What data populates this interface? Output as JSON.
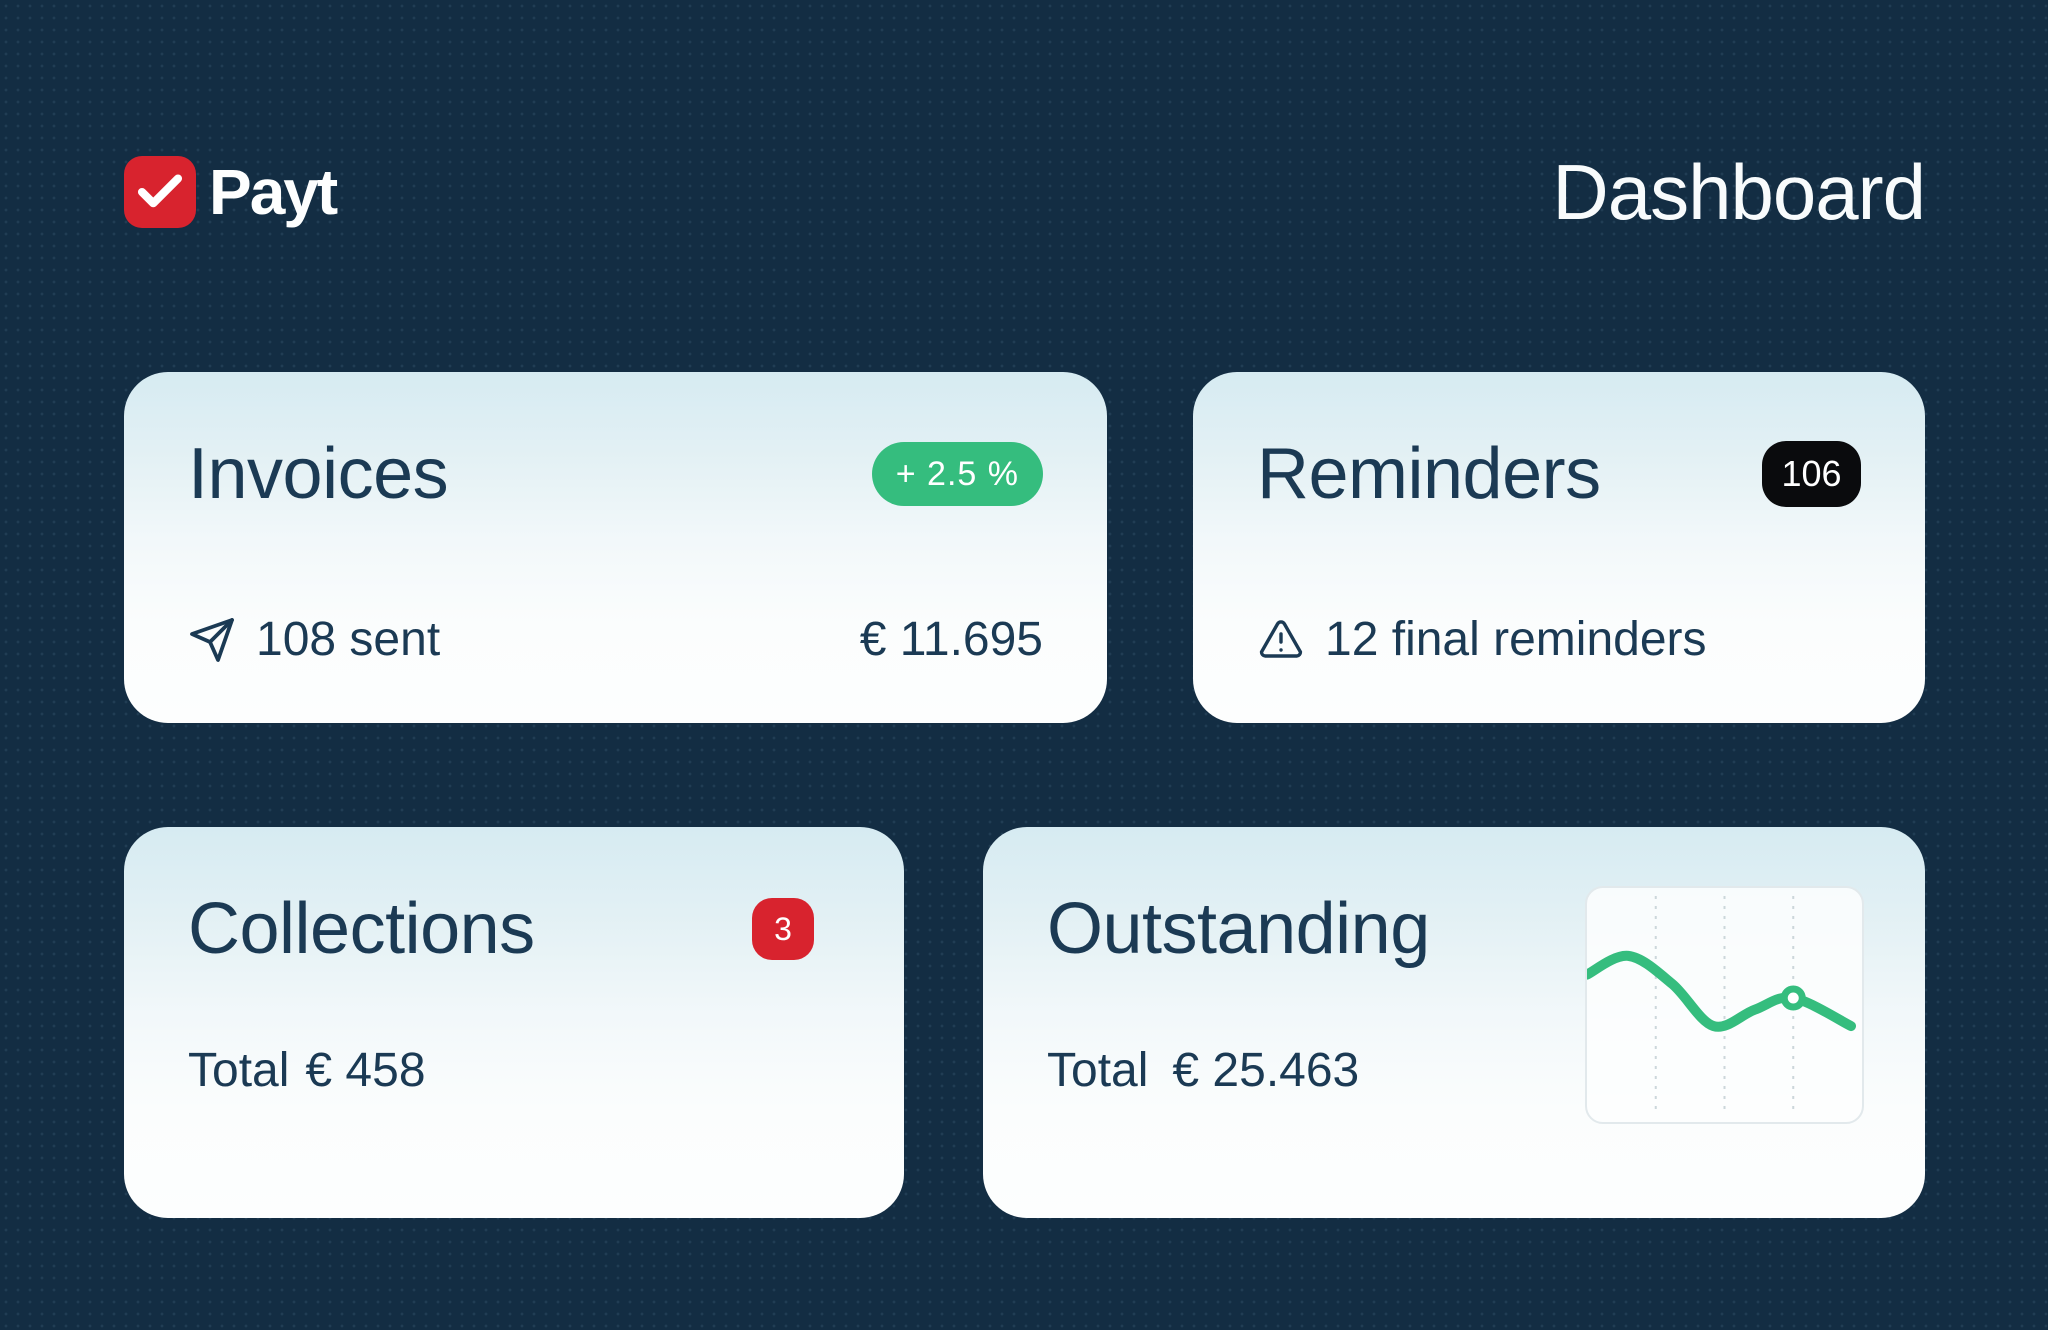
{
  "header": {
    "logo_text": "Payt",
    "page_title": "Dashboard"
  },
  "cards": {
    "invoices": {
      "title": "Invoices",
      "badge_label": "+ 2.5 %",
      "sent_label": "108 sent",
      "amount": "€ 11.695"
    },
    "reminders": {
      "title": "Reminders",
      "badge_label": "106",
      "info_label": "12 final reminders"
    },
    "collections": {
      "title": "Collections",
      "badge_label": "3",
      "total_label": "Total",
      "total_value": "€ 458"
    },
    "outstanding": {
      "title": "Outstanding",
      "total_label": "Total",
      "total_value": "€ 25.463"
    }
  },
  "colors": {
    "background": "#132d43",
    "card_text": "#1b3a54",
    "positive_green": "#35bd7e",
    "alert_red": "#d8232e",
    "badge_black": "#0a0b0d"
  },
  "chart_data": {
    "type": "line",
    "title": "Outstanding trend sparkline (decorative, no axes or labels)",
    "x_pct": [
      0,
      15,
      31,
      46,
      61,
      75,
      96
    ],
    "y_pct_from_top": [
      37,
      29,
      41,
      59,
      52,
      47,
      59
    ],
    "marker_index": 5,
    "gridlines_x_pct": [
      25,
      50,
      75
    ],
    "line_color": "#35bd7e",
    "grid_color": "#ccd7db",
    "axes": "none",
    "legend": "none"
  }
}
